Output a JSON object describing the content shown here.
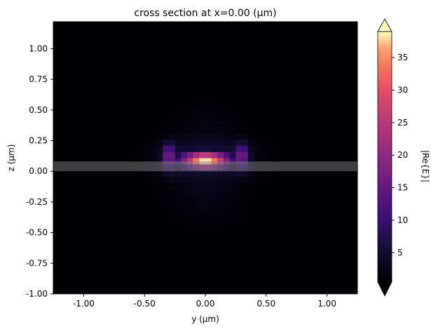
{
  "chart_data": {
    "type": "heatmap",
    "title": "cross section at x=0.00 (µm)",
    "xlabel": "y (µm)",
    "ylabel": "z (µm)",
    "xlim": [
      -1.25,
      1.25
    ],
    "ylim": [
      -1.0,
      1.22
    ],
    "x_ticks": [
      -1.0,
      -0.5,
      0.0,
      0.5,
      1.0
    ],
    "x_tick_labels": [
      "-1.00",
      "-0.50",
      "0.00",
      "0.50",
      "1.00"
    ],
    "y_ticks": [
      -1.0,
      -0.75,
      -0.5,
      -0.25,
      0.0,
      0.25,
      0.5,
      0.75,
      1.0
    ],
    "y_tick_labels": [
      "-1.00",
      "-0.75",
      "-0.50",
      "-0.25",
      "0.00",
      "0.25",
      "0.50",
      "0.75",
      "1.00"
    ],
    "colormap": "magma",
    "colorbar": {
      "label": "|Re{E}|",
      "range": [
        0.5,
        39
      ],
      "ticks": [
        5,
        10,
        15,
        20,
        25,
        30,
        35
      ],
      "tick_labels": [
        "5",
        "10",
        "15",
        "20",
        "25",
        "30",
        "35"
      ],
      "extend": "both"
    },
    "field_peak": 39,
    "field_center": [
      0.0,
      0.09
    ],
    "waveguide_overlay": {
      "z_min": -0.0,
      "z_max": 0.08,
      "color": "#808080",
      "opacity": 0.5
    }
  }
}
